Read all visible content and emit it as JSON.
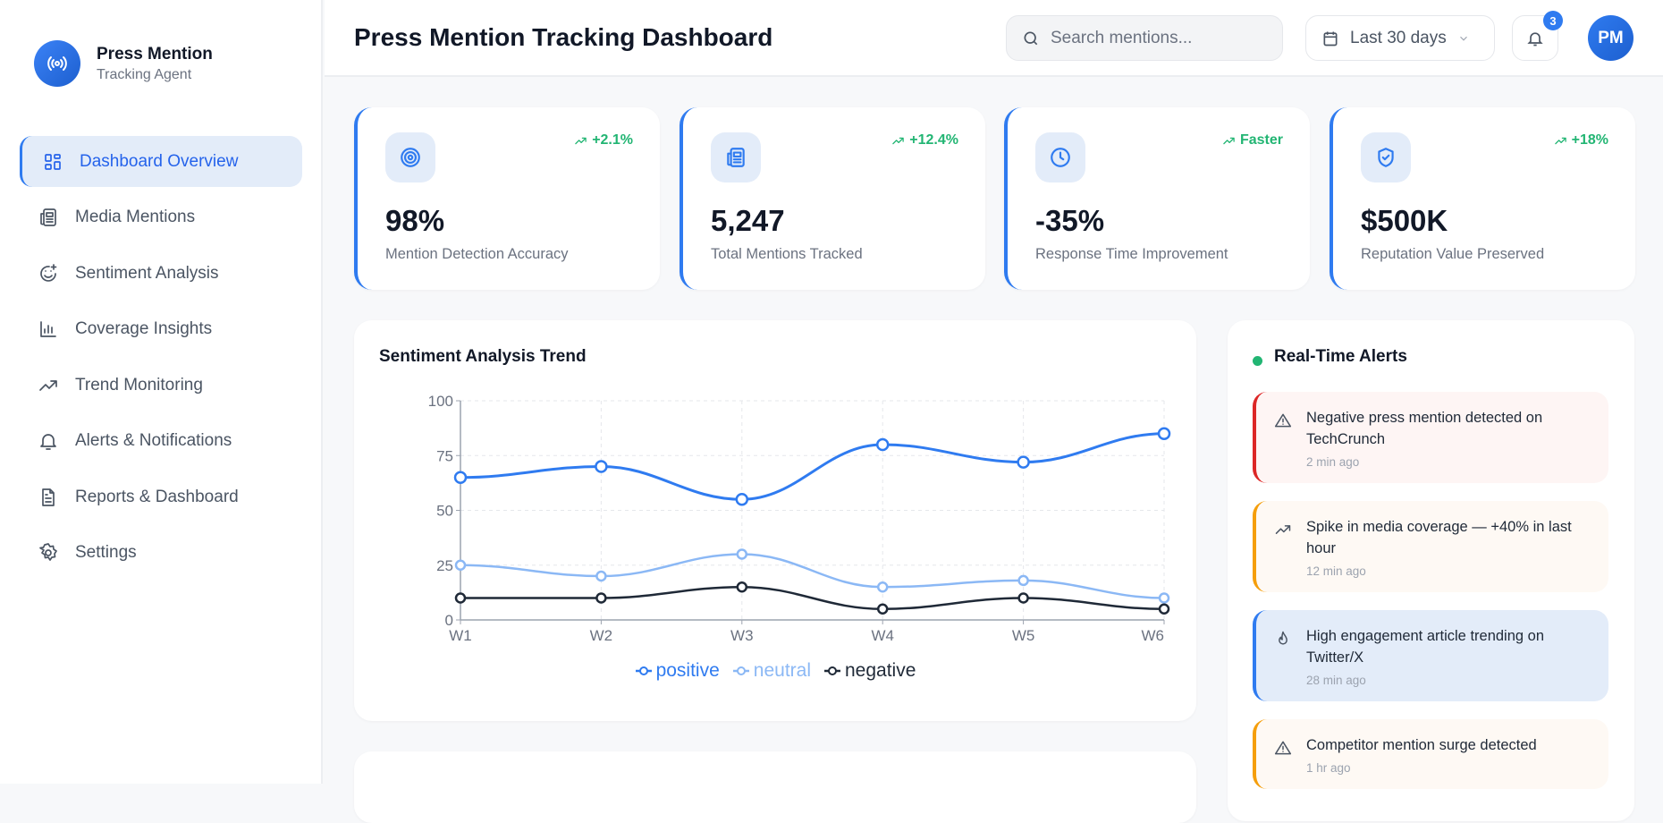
{
  "brand": {
    "title": "Press Mention",
    "subtitle": "Tracking Agent",
    "icon": "broadcast-icon"
  },
  "nav": [
    {
      "label": "Dashboard Overview",
      "icon": "grid-icon",
      "active": true
    },
    {
      "label": "Media Mentions",
      "icon": "newspaper-icon"
    },
    {
      "label": "Sentiment Analysis",
      "icon": "smile-plus-icon"
    },
    {
      "label": "Coverage Insights",
      "icon": "bar-chart-icon"
    },
    {
      "label": "Trend Monitoring",
      "icon": "trending-up-icon"
    },
    {
      "label": "Alerts & Notifications",
      "icon": "bell-icon"
    },
    {
      "label": "Reports & Dashboard",
      "icon": "file-text-icon"
    },
    {
      "label": "Settings",
      "icon": "gear-icon"
    }
  ],
  "header": {
    "title": "Press Mention Tracking Dashboard",
    "search_placeholder": "Search mentions...",
    "date_range": "Last 30 days",
    "notifications": "3",
    "avatar": "PM"
  },
  "stats": [
    {
      "value": "98%",
      "label": "Mention Detection Accuracy",
      "change": "+2.1%",
      "icon": "target-icon"
    },
    {
      "value": "5,247",
      "label": "Total Mentions Tracked",
      "change": "+12.4%",
      "icon": "newspaper-icon"
    },
    {
      "value": "-35%",
      "label": "Response Time Improvement",
      "change": "Faster",
      "icon": "clock-icon"
    },
    {
      "value": "$500K",
      "label": "Reputation Value Preserved",
      "change": "+18%",
      "icon": "shield-check-icon"
    }
  ],
  "chart_data": {
    "type": "line",
    "title": "Sentiment Analysis Trend",
    "categories": [
      "W1",
      "W2",
      "W3",
      "W4",
      "W5",
      "W6"
    ],
    "ylim": [
      0,
      100
    ],
    "yticks": [
      "0",
      "25",
      "50",
      "75",
      "100"
    ],
    "grid": true,
    "legend": "bottom",
    "series": [
      {
        "name": "positive",
        "values": [
          65,
          70,
          55,
          80,
          72,
          85
        ],
        "color": "#2f7bf0"
      },
      {
        "name": "neutral",
        "values": [
          25,
          20,
          30,
          15,
          18,
          10
        ],
        "color": "#8bb8f5"
      },
      {
        "name": "negative",
        "values": [
          10,
          10,
          15,
          5,
          10,
          5
        ],
        "color": "#1f2937"
      }
    ]
  },
  "alerts": {
    "title": "Real-Time Alerts",
    "items": [
      {
        "message": "Negative press mention detected on TechCrunch",
        "time": "2 min ago",
        "icon": "warning-icon",
        "color": "#dc2626",
        "bg": "#fef5f4"
      },
      {
        "message": "Spike in media coverage — +40% in last hour",
        "time": "12 min ago",
        "icon": "trending-up-icon",
        "color": "#f59e0b",
        "bg": "#fef9f4"
      },
      {
        "message": "High engagement article trending on Twitter/X",
        "time": "28 min ago",
        "icon": "flame-icon",
        "color": "#2f7bf0",
        "bg": "#e3ecf9"
      },
      {
        "message": "Competitor mention surge detected",
        "time": "1 hr ago",
        "icon": "warning-icon",
        "color": "#f59e0b",
        "bg": "#fef9f4"
      }
    ]
  }
}
